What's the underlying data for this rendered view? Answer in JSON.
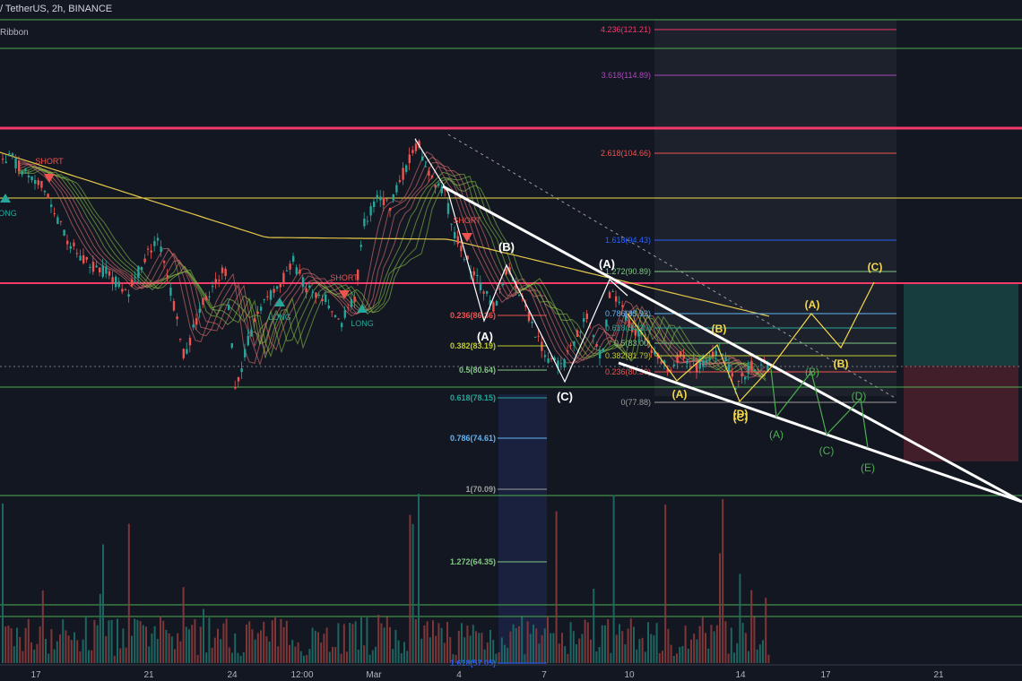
{
  "header": {
    "title": "/ TetherUS, 2h, BINANCE",
    "indicator": "Ribbon"
  },
  "colors": {
    "background": "#131722",
    "up": "#26a69a",
    "down": "#ef5350",
    "pink_line": "#f23a6b",
    "yellow": "#f5d94a",
    "green_label": "#4caf50",
    "white": "#ffffff"
  },
  "chart_data": {
    "type": "candlestick",
    "instrument": "/ TetherUS, 2h, BINANCE",
    "indicator": "Ribbon",
    "x_ticks": [
      "17",
      "21",
      "24",
      "12:00",
      "Mar",
      "4",
      "7",
      "10",
      "14",
      "17",
      "21"
    ],
    "levels_right": [
      {
        "label": "4.236(121.21)",
        "color": "#f23a6b"
      },
      {
        "label": "3.618(114.89)",
        "color": "#ab47bc"
      },
      {
        "label": "2.618(104.66)",
        "color": "#ef5350"
      },
      {
        "label": "1.618(94.43)",
        "color": "#2962ff"
      },
      {
        "label": "1.272(90.89)",
        "color": "#81c784"
      },
      {
        "label": "0.786(85.92)",
        "color": "#64b5f6"
      },
      {
        "label": "0.618(84.20)",
        "color": "#26a69a"
      },
      {
        "label": "0.5(83.00)",
        "color": "#81c784"
      },
      {
        "label": "0.382(81.79)",
        "color": "#c0ca33"
      },
      {
        "label": "0.236(80.30)",
        "color": "#ef5350"
      },
      {
        "label": "0(77.88)",
        "color": "#9e9e9e"
      }
    ],
    "levels_left": [
      {
        "label": "0.236(86.36)",
        "color": "#ef5350"
      },
      {
        "label": "0.382(83.19)",
        "color": "#c0ca33"
      },
      {
        "label": "0.5(80.64)",
        "color": "#81c784"
      },
      {
        "label": "0.618(78.15)",
        "color": "#26a69a"
      },
      {
        "label": "0.786(74.61)",
        "color": "#64b5f6"
      },
      {
        "label": "1(70.09)",
        "color": "#9e9e9e"
      },
      {
        "label": "1.272(64.35)",
        "color": "#81c784"
      },
      {
        "label": "1.618(57.05)",
        "color": "#2962ff"
      }
    ],
    "signals": [
      {
        "text": "SHORT",
        "type": "short"
      },
      {
        "text": "LONG",
        "type": "long"
      },
      {
        "text": "LONG",
        "type": "long"
      },
      {
        "text": "SHORT",
        "type": "short"
      },
      {
        "text": "LONG",
        "type": "long"
      },
      {
        "text": "SHORT",
        "type": "short"
      }
    ],
    "wave_labels_white": [
      "(A)",
      "(B)",
      "(C)",
      "(A)"
    ],
    "wave_labels_yellow": [
      "(A)",
      "(B)",
      "(C)",
      "(D)",
      "(A)",
      "(B)",
      "(C)"
    ],
    "wave_labels_green": [
      "(A)",
      "(B)",
      "(C)",
      "(D)",
      "(E)"
    ],
    "grid": false
  }
}
